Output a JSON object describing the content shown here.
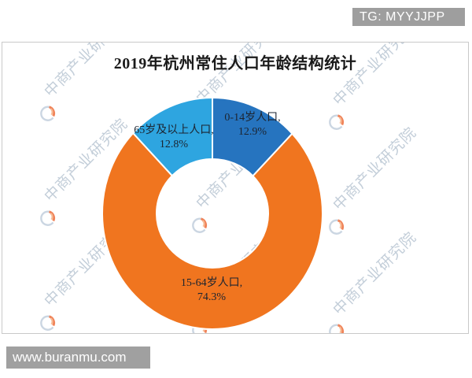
{
  "overlays": {
    "tg_badge": "TG: MYYJJPP",
    "url_badge": "www.buranmu.com",
    "badge_bg": "#9e9e9e"
  },
  "watermark": {
    "text": "中商产业研究院",
    "color": "#b9c6d3",
    "logo_colors": {
      "ring": "#c3cfdd",
      "swoosh": "#ee6f3e",
      "swoosh_light": "#f6b286"
    }
  },
  "chart_data": {
    "type": "pie",
    "subtype": "donut",
    "title": "2019年杭州常住人口年龄结构统计",
    "categories": [
      "0-14岁人口",
      "15-64岁人口",
      "65岁及以上人口"
    ],
    "values": [
      12.9,
      74.3,
      12.8
    ],
    "unit": "%",
    "colors": [
      "#2674BF",
      "#F0751F",
      "#2EA5E0"
    ],
    "slice_border_color": "#ffffff",
    "start_angle_deg": 0,
    "direction": "clockwise",
    "legend": "none",
    "data_labels": [
      "0-14岁人口,\n12.9%",
      "15-64岁人口,\n74.3%",
      "65岁及以上人口,\n12.8%"
    ]
  }
}
